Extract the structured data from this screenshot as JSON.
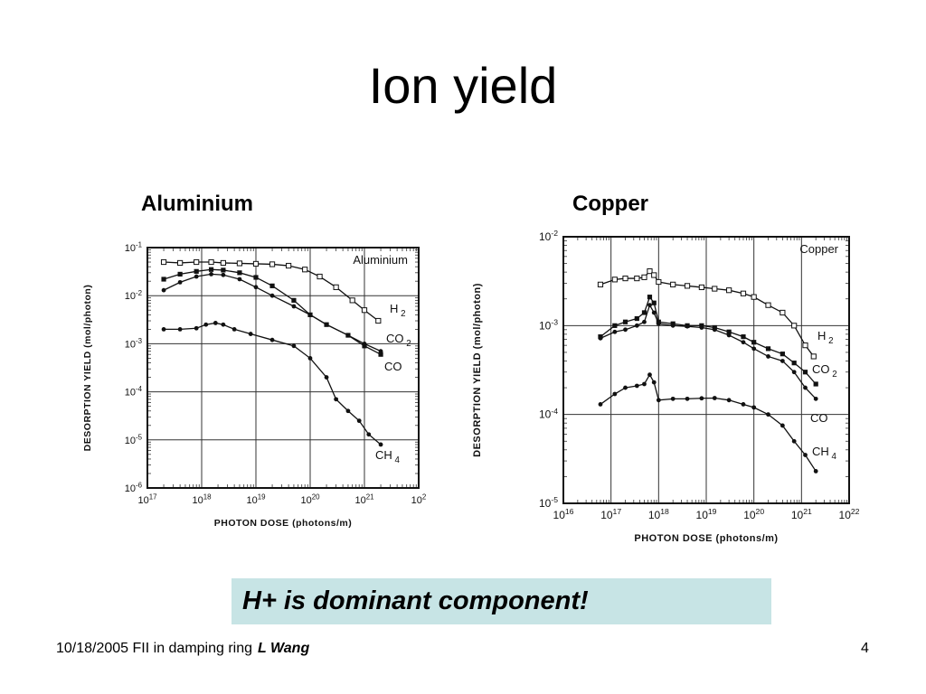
{
  "slide": {
    "title": "Ion yield",
    "callout": "H+ is dominant component!",
    "footer_text": "10/18/2005 FII in damping ring",
    "footer_author": "L Wang",
    "page_number": "4"
  },
  "chart_data": [
    {
      "type": "line",
      "title": "Aluminium",
      "inner_label": "Aluminium",
      "xlabel": "PHOTON DOSE (photons/m)",
      "ylabel": "DESORPTION YIELD (mol/photon)",
      "x_scale": "log",
      "y_scale": "log",
      "xlim": [
        1e+17,
        1e+22
      ],
      "ylim": [
        1e-06,
        0.1
      ],
      "x_ticks": [
        {
          "base": "10",
          "exp": "17"
        },
        {
          "base": "10",
          "exp": "18"
        },
        {
          "base": "10",
          "exp": "19"
        },
        {
          "base": "10",
          "exp": "20"
        },
        {
          "base": "10",
          "exp": "21"
        },
        {
          "base": "10",
          "exp": "2"
        }
      ],
      "y_ticks": [
        {
          "base": "10",
          "exp": "-1"
        },
        {
          "base": "10",
          "exp": "-2"
        },
        {
          "base": "10",
          "exp": "-3"
        },
        {
          "base": "10",
          "exp": "-4"
        },
        {
          "base": "10",
          "exp": "-5"
        },
        {
          "base": "10",
          "exp": "-6"
        }
      ],
      "grid": true,
      "series": [
        {
          "name": "H",
          "sub": "2",
          "marker": "square-open",
          "x": [
            2e+17,
            4e+17,
            8e+17,
            1.5e+18,
            2.5e+18,
            5e+18,
            1e+19,
            2e+19,
            4e+19,
            8e+19,
            1.5e+20,
            3e+20,
            6e+20,
            1e+21,
            1.8e+21
          ],
          "y": [
            0.05,
            0.048,
            0.05,
            0.05,
            0.048,
            0.047,
            0.046,
            0.045,
            0.042,
            0.035,
            0.025,
            0.015,
            0.008,
            0.005,
            0.003
          ]
        },
        {
          "name": "CO",
          "sub": "2",
          "marker": "dot",
          "x": [
            2e+17,
            4e+17,
            8e+17,
            1.5e+18,
            2.5e+18,
            5e+18,
            1e+19,
            2e+19,
            5e+19,
            1e+20,
            2e+20,
            5e+20,
            1e+21,
            2e+21
          ],
          "y": [
            0.013,
            0.019,
            0.025,
            0.028,
            0.027,
            0.022,
            0.015,
            0.01,
            0.006,
            0.004,
            0.0025,
            0.0015,
            0.001,
            0.0007
          ]
        },
        {
          "name": "CO",
          "sub": "",
          "marker": "square-filled",
          "x": [
            2e+17,
            4e+17,
            8e+17,
            1.5e+18,
            2.5e+18,
            5e+18,
            1e+19,
            2e+19,
            5e+19,
            1e+20,
            2e+20,
            5e+20,
            1e+21,
            2e+21
          ],
          "y": [
            0.022,
            0.028,
            0.032,
            0.035,
            0.034,
            0.03,
            0.024,
            0.016,
            0.008,
            0.004,
            0.0025,
            0.0015,
            0.0009,
            0.0006
          ]
        },
        {
          "name": "CH",
          "sub": "4",
          "marker": "dot",
          "x": [
            2e+17,
            4e+17,
            8e+17,
            1.2e+18,
            1.8e+18,
            2.5e+18,
            4e+18,
            8e+18,
            2e+19,
            5e+19,
            1e+20,
            2e+20,
            3e+20,
            5e+20,
            8e+20,
            1.2e+21,
            2e+21
          ],
          "y": [
            0.002,
            0.002,
            0.0021,
            0.0025,
            0.0027,
            0.0025,
            0.002,
            0.0016,
            0.0012,
            0.0009,
            0.0005,
            0.0002,
            7e-05,
            4e-05,
            2.5e-05,
            1.3e-05,
            8e-06
          ]
        }
      ]
    },
    {
      "type": "line",
      "title": "Copper",
      "inner_label": "Copper",
      "xlabel": "PHOTON DOSE (photons/m)",
      "ylabel": "DESORPTION YIELD (mol/photon)",
      "x_scale": "log",
      "y_scale": "log",
      "xlim": [
        1e+16,
        1e+22
      ],
      "ylim": [
        1e-05,
        0.01
      ],
      "x_ticks": [
        {
          "base": "10",
          "exp": "16"
        },
        {
          "base": "10",
          "exp": "17"
        },
        {
          "base": "10",
          "exp": "18"
        },
        {
          "base": "10",
          "exp": "19"
        },
        {
          "base": "10",
          "exp": "20"
        },
        {
          "base": "10",
          "exp": "21"
        },
        {
          "base": "10",
          "exp": "22"
        }
      ],
      "y_ticks": [
        {
          "base": "10",
          "exp": "-2"
        },
        {
          "base": "10",
          "exp": "-3"
        },
        {
          "base": "10",
          "exp": "-4"
        },
        {
          "base": "10",
          "exp": "-5"
        }
      ],
      "grid": true,
      "series": [
        {
          "name": "H",
          "sub": "2",
          "marker": "square-open",
          "x": [
            6e+16,
            1.2e+17,
            2e+17,
            3.5e+17,
            5e+17,
            6.5e+17,
            8e+17,
            1e+18,
            2e+18,
            4e+18,
            8e+18,
            1.5e+19,
            3e+19,
            6e+19,
            1e+20,
            2e+20,
            4e+20,
            7e+20,
            1.2e+21,
            1.8e+21
          ],
          "y": [
            0.0029,
            0.0033,
            0.0034,
            0.0034,
            0.0035,
            0.0041,
            0.0037,
            0.0031,
            0.0029,
            0.0028,
            0.0027,
            0.0026,
            0.0025,
            0.0023,
            0.0021,
            0.0017,
            0.0014,
            0.001,
            0.0006,
            0.00045
          ]
        },
        {
          "name": "CO",
          "sub": "2",
          "marker": "square-filled",
          "x": [
            6e+16,
            1.2e+17,
            2e+17,
            3.5e+17,
            5e+17,
            6.5e+17,
            8e+17,
            1e+18,
            2e+18,
            4e+18,
            8e+18,
            1.5e+19,
            3e+19,
            6e+19,
            1e+20,
            2e+20,
            4e+20,
            7e+20,
            1.2e+21,
            2e+21
          ],
          "y": [
            0.00075,
            0.001,
            0.0011,
            0.0012,
            0.0014,
            0.0021,
            0.0018,
            0.0011,
            0.00105,
            0.001,
            0.001,
            0.00095,
            0.00085,
            0.00075,
            0.00065,
            0.00055,
            0.00048,
            0.00038,
            0.0003,
            0.00022
          ]
        },
        {
          "name": "CO",
          "sub": "",
          "marker": "dot",
          "x": [
            6e+16,
            1.2e+17,
            2e+17,
            3.5e+17,
            5e+17,
            6.5e+17,
            8e+17,
            1e+18,
            2e+18,
            4e+18,
            8e+18,
            1.5e+19,
            3e+19,
            6e+19,
            1e+20,
            2e+20,
            4e+20,
            7e+20,
            1.2e+21,
            2e+21
          ],
          "y": [
            0.00072,
            0.00085,
            0.0009,
            0.001,
            0.0011,
            0.0017,
            0.0014,
            0.00105,
            0.001,
            0.00098,
            0.00095,
            0.0009,
            0.00078,
            0.00065,
            0.00055,
            0.00045,
            0.0004,
            0.0003,
            0.0002,
            0.00015
          ]
        },
        {
          "name": "CH",
          "sub": "4",
          "marker": "dot",
          "x": [
            6e+16,
            1.2e+17,
            2e+17,
            3.5e+17,
            5e+17,
            6.5e+17,
            8e+17,
            1e+18,
            2e+18,
            4e+18,
            8e+18,
            1.5e+19,
            3e+19,
            6e+19,
            1e+20,
            2e+20,
            4e+20,
            7e+20,
            1.2e+21,
            2e+21
          ],
          "y": [
            0.00013,
            0.00017,
            0.0002,
            0.00021,
            0.00022,
            0.00028,
            0.00023,
            0.000145,
            0.00015,
            0.00015,
            0.000152,
            0.000153,
            0.000145,
            0.00013,
            0.00012,
            0.0001,
            7.5e-05,
            5e-05,
            3.5e-05,
            2.3e-05
          ]
        }
      ]
    }
  ]
}
